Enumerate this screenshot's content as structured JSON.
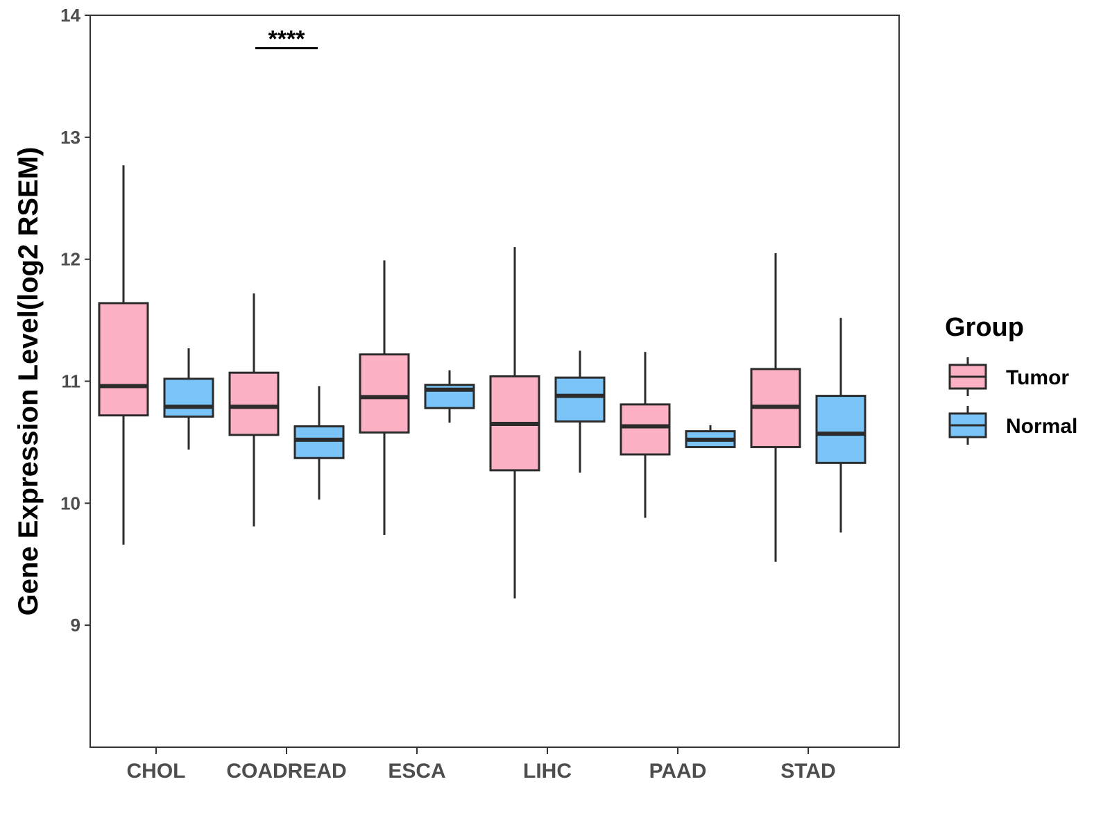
{
  "chart_data": {
    "type": "boxplot",
    "title": "",
    "xlabel": "",
    "ylabel": "Gene Expression Level(log2 RSEM)",
    "ylim": [
      8.0,
      14.0
    ],
    "yticks": [
      9,
      10,
      11,
      12,
      13,
      14
    ],
    "grid": false,
    "legend_position": "right",
    "legend_title": "Group",
    "categories": [
      "CHOL",
      "COADREAD",
      "ESCA",
      "LIHC",
      "PAAD",
      "STAD"
    ],
    "series": [
      {
        "name": "Tumor",
        "color": "#FBB1C3",
        "boxes": [
          {
            "category": "CHOL",
            "whisker_low": 9.66,
            "q1": 10.72,
            "median": 10.96,
            "q3": 11.64,
            "whisker_high": 12.77
          },
          {
            "category": "COADREAD",
            "whisker_low": 9.81,
            "q1": 10.56,
            "median": 10.79,
            "q3": 11.07,
            "whisker_high": 11.72
          },
          {
            "category": "ESCA",
            "whisker_low": 9.74,
            "q1": 10.58,
            "median": 10.87,
            "q3": 11.22,
            "whisker_high": 11.99
          },
          {
            "category": "LIHC",
            "whisker_low": 9.22,
            "q1": 10.27,
            "median": 10.65,
            "q3": 11.04,
            "whisker_high": 12.1
          },
          {
            "category": "PAAD",
            "whisker_low": 9.88,
            "q1": 10.4,
            "median": 10.63,
            "q3": 10.81,
            "whisker_high": 11.24
          },
          {
            "category": "STAD",
            "whisker_low": 9.52,
            "q1": 10.46,
            "median": 10.79,
            "q3": 11.1,
            "whisker_high": 12.05
          }
        ]
      },
      {
        "name": "Normal",
        "color": "#7AC4F7",
        "boxes": [
          {
            "category": "CHOL",
            "whisker_low": 10.44,
            "q1": 10.71,
            "median": 10.79,
            "q3": 11.02,
            "whisker_high": 11.27
          },
          {
            "category": "COADREAD",
            "whisker_low": 10.03,
            "q1": 10.37,
            "median": 10.52,
            "q3": 10.63,
            "whisker_high": 10.96
          },
          {
            "category": "ESCA",
            "whisker_low": 10.66,
            "q1": 10.78,
            "median": 10.93,
            "q3": 10.97,
            "whisker_high": 11.09
          },
          {
            "category": "LIHC",
            "whisker_low": 10.25,
            "q1": 10.67,
            "median": 10.88,
            "q3": 11.03,
            "whisker_high": 11.25
          },
          {
            "category": "PAAD",
            "whisker_low": 10.46,
            "q1": 10.46,
            "median": 10.52,
            "q3": 10.59,
            "whisker_high": 10.64
          },
          {
            "category": "STAD",
            "whisker_low": 9.76,
            "q1": 10.33,
            "median": 10.57,
            "q3": 10.88,
            "whisker_high": 11.52
          }
        ]
      }
    ],
    "annotations": [
      {
        "category": "COADREAD",
        "text": "****",
        "y": 13.73
      }
    ]
  },
  "colors": {
    "tumor": "#FBB1C3",
    "normal": "#7AC4F7",
    "outline": "#2b2b2b",
    "axis_text": "#4d4d4d"
  }
}
